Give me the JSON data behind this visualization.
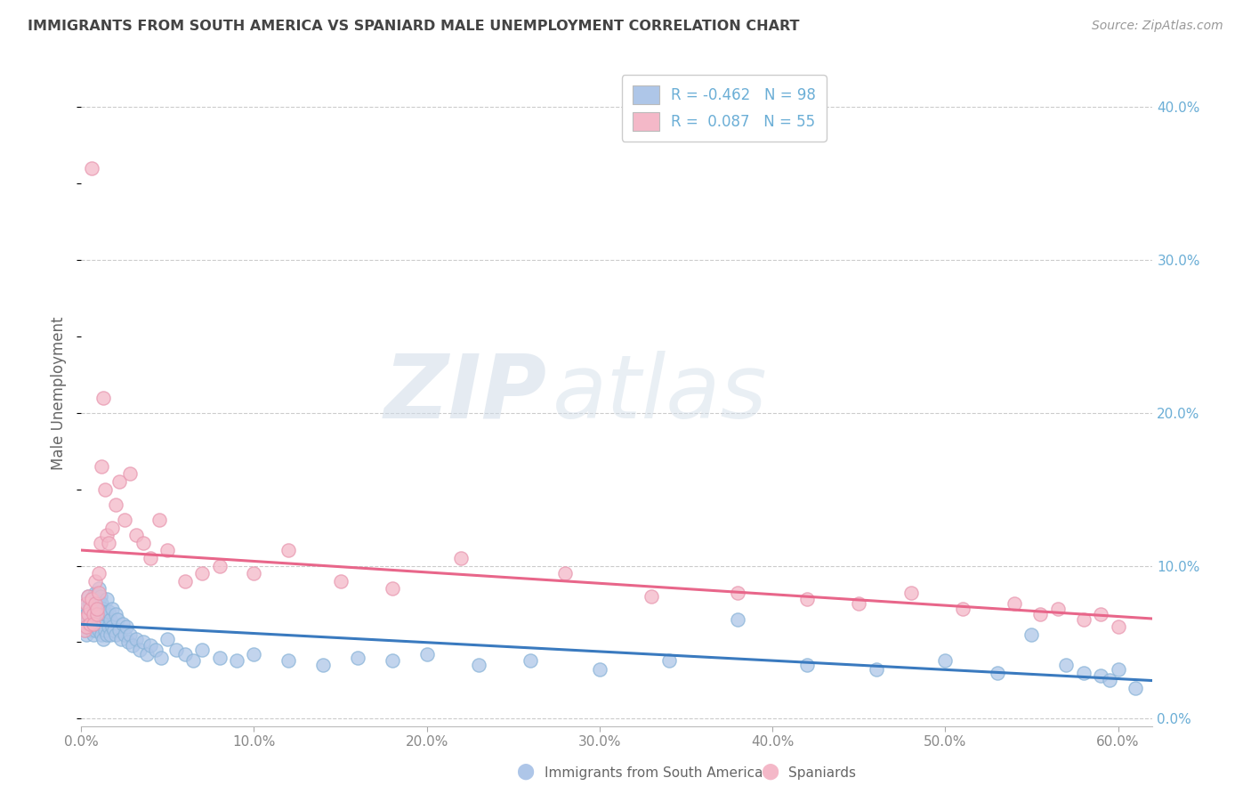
{
  "title": "IMMIGRANTS FROM SOUTH AMERICA VS SPANIARD MALE UNEMPLOYMENT CORRELATION CHART",
  "source": "Source: ZipAtlas.com",
  "ylabel": "Male Unemployment",
  "watermark": "ZIPatlas",
  "legend_entries": [
    {
      "label": "R = -0.462   N = 98",
      "color": "#aec6e8"
    },
    {
      "label": "R =  0.087   N = 55",
      "color": "#f4b8c8"
    }
  ],
  "legend_bottom": [
    "Immigrants from South America",
    "Spaniards"
  ],
  "blue_color": "#aec6e8",
  "pink_color": "#f4b8c8",
  "blue_line_color": "#3a7abf",
  "pink_line_color": "#e8668a",
  "axis_label_color": "#6baed6",
  "title_color": "#444444",
  "background_color": "#ffffff",
  "grid_color": "#cccccc",
  "xlim": [
    0.0,
    0.62
  ],
  "ylim": [
    -0.005,
    0.43
  ],
  "yticks": [
    0.0,
    0.1,
    0.2,
    0.3,
    0.4
  ],
  "xticks": [
    0.0,
    0.1,
    0.2,
    0.3,
    0.4,
    0.5,
    0.6
  ],
  "blue_scatter_x": [
    0.001,
    0.002,
    0.002,
    0.003,
    0.003,
    0.003,
    0.004,
    0.004,
    0.004,
    0.005,
    0.005,
    0.005,
    0.006,
    0.006,
    0.006,
    0.007,
    0.007,
    0.007,
    0.007,
    0.008,
    0.008,
    0.008,
    0.008,
    0.009,
    0.009,
    0.009,
    0.01,
    0.01,
    0.01,
    0.01,
    0.011,
    0.011,
    0.011,
    0.012,
    0.012,
    0.012,
    0.013,
    0.013,
    0.013,
    0.014,
    0.014,
    0.015,
    0.015,
    0.015,
    0.016,
    0.016,
    0.017,
    0.017,
    0.018,
    0.018,
    0.019,
    0.02,
    0.02,
    0.021,
    0.022,
    0.023,
    0.024,
    0.025,
    0.026,
    0.027,
    0.028,
    0.03,
    0.032,
    0.034,
    0.036,
    0.038,
    0.04,
    0.043,
    0.046,
    0.05,
    0.055,
    0.06,
    0.065,
    0.07,
    0.08,
    0.09,
    0.1,
    0.12,
    0.14,
    0.16,
    0.18,
    0.2,
    0.23,
    0.26,
    0.3,
    0.34,
    0.38,
    0.42,
    0.46,
    0.5,
    0.53,
    0.55,
    0.57,
    0.58,
    0.59,
    0.595,
    0.6,
    0.61
  ],
  "blue_scatter_y": [
    0.062,
    0.072,
    0.058,
    0.068,
    0.075,
    0.055,
    0.08,
    0.065,
    0.07,
    0.075,
    0.068,
    0.06,
    0.078,
    0.065,
    0.058,
    0.072,
    0.08,
    0.068,
    0.055,
    0.082,
    0.07,
    0.062,
    0.058,
    0.078,
    0.068,
    0.06,
    0.085,
    0.075,
    0.065,
    0.058,
    0.08,
    0.07,
    0.06,
    0.075,
    0.065,
    0.055,
    0.072,
    0.062,
    0.052,
    0.068,
    0.058,
    0.078,
    0.068,
    0.055,
    0.07,
    0.06,
    0.065,
    0.055,
    0.072,
    0.06,
    0.058,
    0.068,
    0.055,
    0.065,
    0.058,
    0.052,
    0.062,
    0.055,
    0.06,
    0.05,
    0.055,
    0.048,
    0.052,
    0.045,
    0.05,
    0.042,
    0.048,
    0.045,
    0.04,
    0.052,
    0.045,
    0.042,
    0.038,
    0.045,
    0.04,
    0.038,
    0.042,
    0.038,
    0.035,
    0.04,
    0.038,
    0.042,
    0.035,
    0.038,
    0.032,
    0.038,
    0.065,
    0.035,
    0.032,
    0.038,
    0.03,
    0.055,
    0.035,
    0.03,
    0.028,
    0.025,
    0.032,
    0.02
  ],
  "pink_scatter_x": [
    0.001,
    0.002,
    0.003,
    0.003,
    0.004,
    0.004,
    0.005,
    0.005,
    0.006,
    0.006,
    0.007,
    0.007,
    0.008,
    0.008,
    0.009,
    0.009,
    0.01,
    0.01,
    0.011,
    0.012,
    0.013,
    0.014,
    0.015,
    0.016,
    0.018,
    0.02,
    0.022,
    0.025,
    0.028,
    0.032,
    0.036,
    0.04,
    0.045,
    0.05,
    0.06,
    0.07,
    0.08,
    0.1,
    0.12,
    0.15,
    0.18,
    0.22,
    0.28,
    0.33,
    0.38,
    0.42,
    0.45,
    0.48,
    0.51,
    0.54,
    0.555,
    0.565,
    0.58,
    0.59,
    0.6
  ],
  "pink_scatter_y": [
    0.065,
    0.058,
    0.075,
    0.06,
    0.08,
    0.068,
    0.072,
    0.062,
    0.36,
    0.078,
    0.068,
    0.062,
    0.09,
    0.075,
    0.068,
    0.072,
    0.095,
    0.082,
    0.115,
    0.165,
    0.21,
    0.15,
    0.12,
    0.115,
    0.125,
    0.14,
    0.155,
    0.13,
    0.16,
    0.12,
    0.115,
    0.105,
    0.13,
    0.11,
    0.09,
    0.095,
    0.1,
    0.095,
    0.11,
    0.09,
    0.085,
    0.105,
    0.095,
    0.08,
    0.082,
    0.078,
    0.075,
    0.082,
    0.072,
    0.075,
    0.068,
    0.072,
    0.065,
    0.068,
    0.06
  ]
}
